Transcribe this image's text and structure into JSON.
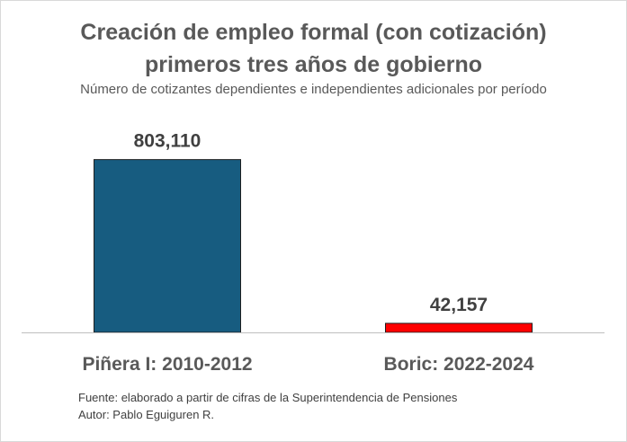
{
  "chart_data": {
    "type": "bar",
    "title_line1": "Creación de empleo formal (con cotización)",
    "title_line2": "primeros tres años de gobierno",
    "subtitle": "Número de cotizantes dependientes e independientes adicionales por período",
    "categories": [
      "Piñera I: 2010-2012",
      "Boric: 2022-2024"
    ],
    "values": [
      803110,
      42157
    ],
    "data_labels": [
      "803,110",
      "42,157"
    ],
    "bar_colors": [
      "#175c80",
      "#ff0000"
    ],
    "ylim": [
      0,
      860000
    ],
    "grid": false,
    "legend": "none"
  },
  "footer": {
    "source": "Fuente: elaborado a partir de cifras de la Superintendencia de Pensiones",
    "author": "Autor: Pablo Eguiguren R."
  }
}
